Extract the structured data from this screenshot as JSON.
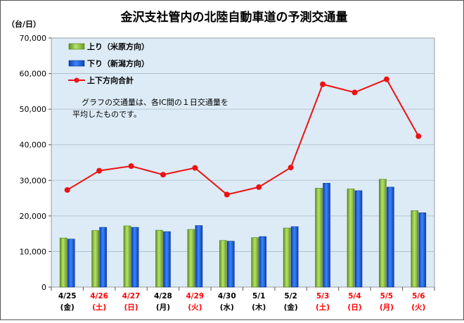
{
  "chart_data": {
    "type": "bar",
    "title": "金沢支社管内の北陸自動車道の予測交通量",
    "ylabel": "（台/日）",
    "ylim": [
      0,
      70000
    ],
    "yticks": [
      "0",
      "10,000",
      "20,000",
      "30,000",
      "40,000",
      "50,000",
      "60,000",
      "70,000"
    ],
    "grid": true,
    "legend_position": "top-left",
    "note_lines": [
      "グラフの交通量は、各IC間の１日交通量を",
      "平均したものです。"
    ],
    "categories": [
      {
        "date": "4/25",
        "day": "(金)",
        "color": "#000000"
      },
      {
        "date": "4/26",
        "day": "(土)",
        "color": "#ff0000"
      },
      {
        "date": "4/27",
        "day": "(日)",
        "color": "#ff0000"
      },
      {
        "date": "4/28",
        "day": "(月)",
        "color": "#000000"
      },
      {
        "date": "4/29",
        "day": "(火)",
        "color": "#ff0000"
      },
      {
        "date": "4/30",
        "day": "(水)",
        "color": "#000000"
      },
      {
        "date": "5/1",
        "day": "(木)",
        "color": "#000000"
      },
      {
        "date": "5/2",
        "day": "(金)",
        "color": "#000000"
      },
      {
        "date": "5/3",
        "day": "(土)",
        "color": "#ff0000"
      },
      {
        "date": "5/4",
        "day": "(日)",
        "color": "#ff0000"
      },
      {
        "date": "5/5",
        "day": "(月)",
        "color": "#ff0000"
      },
      {
        "date": "5/6",
        "day": "(火)",
        "color": "#ff0000"
      }
    ],
    "series": [
      {
        "name": "上り（米原方向）",
        "type": "bar",
        "color": "#8cc63f",
        "values": [
          13800,
          15900,
          17200,
          16000,
          16200,
          13100,
          13900,
          16600,
          27800,
          27600,
          30300,
          21500
        ]
      },
      {
        "name": "下り（新潟方向）",
        "type": "bar",
        "color": "#1f5fe0",
        "values": [
          13500,
          16800,
          16800,
          15600,
          17300,
          12900,
          14200,
          17000,
          29200,
          27100,
          28100,
          20900
        ]
      },
      {
        "name": "上下方向合計",
        "type": "line",
        "color": "#ee1111",
        "values": [
          27300,
          32700,
          34000,
          31600,
          33500,
          26000,
          28100,
          33600,
          57000,
          54700,
          58400,
          42400
        ]
      }
    ]
  }
}
